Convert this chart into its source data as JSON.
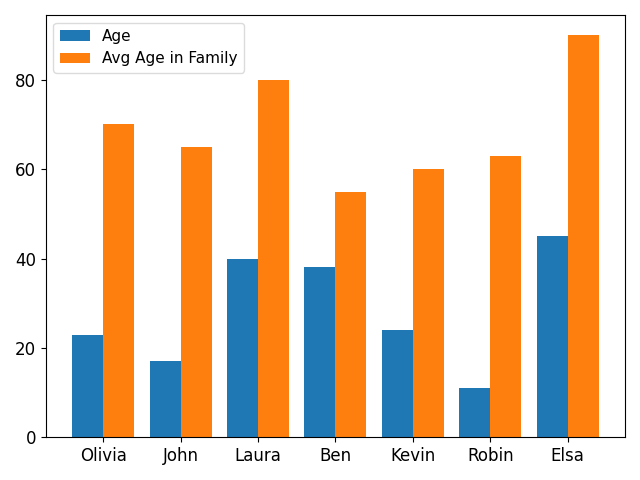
{
  "categories": [
    "Olivia",
    "John",
    "Laura",
    "Ben",
    "Kevin",
    "Robin",
    "Elsa"
  ],
  "age": [
    23,
    17,
    40,
    38,
    24,
    11,
    45
  ],
  "avg_age_family": [
    70,
    65,
    80,
    55,
    60,
    63,
    90
  ],
  "color_age": "#1F77B4",
  "color_avg": "#FF7F0E",
  "legend_labels": [
    "Age",
    "Avg Age in Family"
  ],
  "bar_width": 0.4,
  "figsize": [
    6.4,
    4.8
  ],
  "dpi": 100
}
